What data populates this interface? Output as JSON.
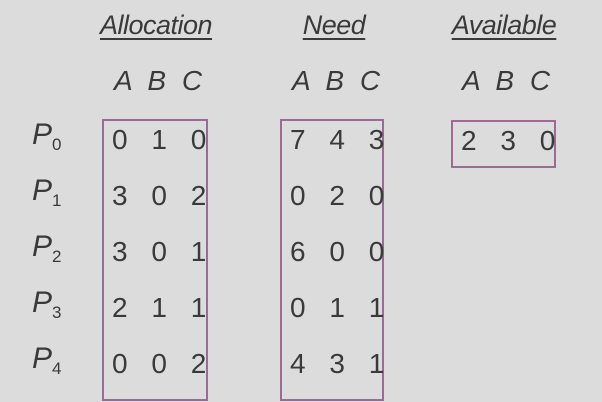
{
  "headers": {
    "allocation": "Allocation",
    "need": "Need",
    "available": "Available"
  },
  "columns_label": "A B C",
  "processes": [
    {
      "label": "P",
      "index": "0"
    },
    {
      "label": "P",
      "index": "1"
    },
    {
      "label": "P",
      "index": "2"
    },
    {
      "label": "P",
      "index": "3"
    },
    {
      "label": "P",
      "index": "4"
    }
  ],
  "allocation": [
    "0 1 0",
    "3 0 2",
    "3 0 1",
    "2 1 1",
    "0 0 2"
  ],
  "need": [
    "7 4 3",
    "0 2 0",
    "6 0 0",
    "0 1 1",
    "4 3 1"
  ],
  "available": [
    "2 3 0"
  ],
  "colors": {
    "background": "#dcdcdc",
    "text": "#3a3a3a",
    "box_border": "#9a6b93"
  }
}
